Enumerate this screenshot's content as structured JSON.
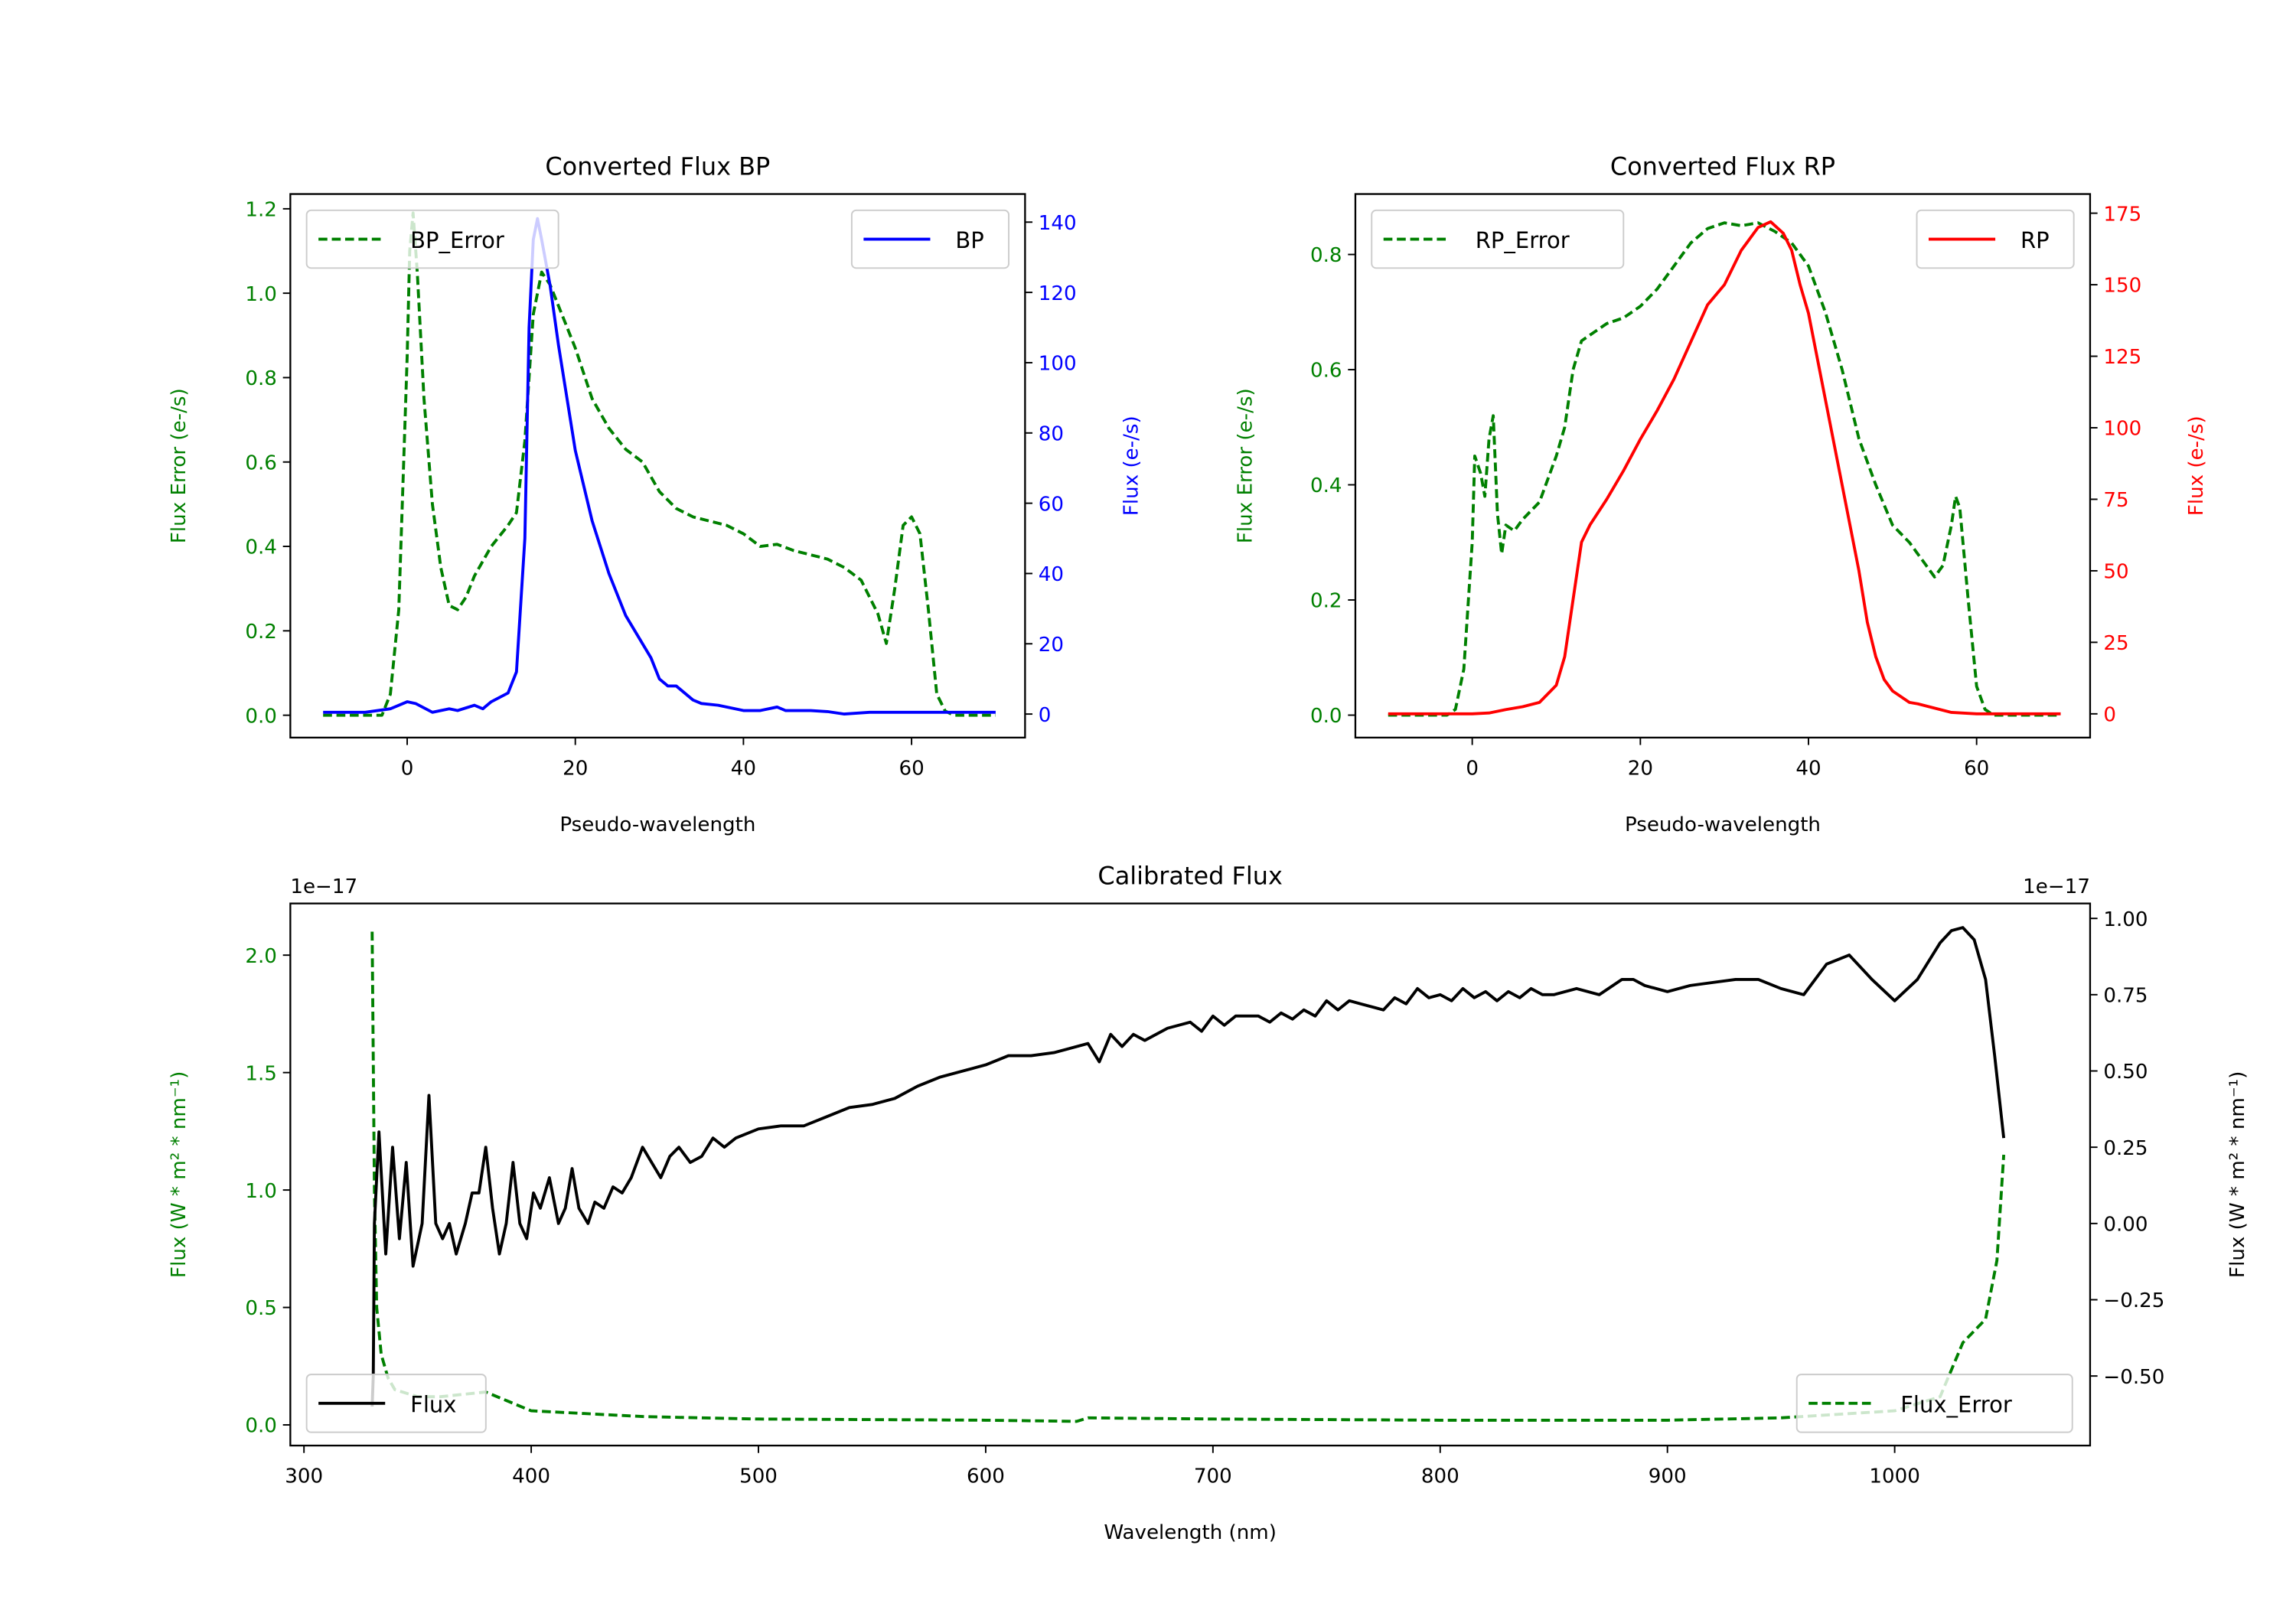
{
  "colors": {
    "green": "#008000",
    "blue": "#0000ff",
    "red": "#ff0000",
    "black": "#000000"
  },
  "chart_data": [
    {
      "type": "line",
      "title": "Converted Flux BP",
      "xlabel": "Pseudo-wavelength",
      "ylabel_left": "Flux Error (e-/s)",
      "ylabel_right": "Flux (e-/s)",
      "left_color": "#008000",
      "right_color": "#0000ff",
      "xlim": [
        -13.9,
        73.5
      ],
      "ylim_left": [
        -0.053,
        1.235
      ],
      "ylim_right": [
        -6.7,
        148
      ],
      "xticks": [
        {
          "v": 0,
          "t": "0"
        },
        {
          "v": 20,
          "t": "20"
        },
        {
          "v": 40,
          "t": "40"
        },
        {
          "v": 60,
          "t": "60"
        }
      ],
      "yticks_left": [
        {
          "v": 0,
          "t": "0.0"
        },
        {
          "v": 0.2,
          "t": "0.2"
        },
        {
          "v": 0.4,
          "t": "0.4"
        },
        {
          "v": 0.6,
          "t": "0.6"
        },
        {
          "v": 0.8,
          "t": "0.8"
        },
        {
          "v": 1.0,
          "t": "1.0"
        },
        {
          "v": 1.2,
          "t": "1.2"
        }
      ],
      "yticks_right": [
        {
          "v": 0,
          "t": "0"
        },
        {
          "v": 20,
          "t": "20"
        },
        {
          "v": 40,
          "t": "40"
        },
        {
          "v": 60,
          "t": "60"
        },
        {
          "v": 80,
          "t": "80"
        },
        {
          "v": 100,
          "t": "100"
        },
        {
          "v": 120,
          "t": "120"
        },
        {
          "v": 140,
          "t": "140"
        }
      ],
      "legend": [
        "upper left: BP_Error",
        "upper right: BP"
      ],
      "series": [
        {
          "name": "BP_Error",
          "axis": "left",
          "color": "#008000",
          "style": "dashed",
          "x": [
            -10,
            -3,
            -2,
            -1,
            -0.5,
            0,
            0.3,
            0.7,
            1.2,
            2,
            3,
            4,
            5,
            6,
            7,
            8,
            10,
            12,
            13,
            14,
            15,
            16,
            17,
            18,
            20,
            22,
            24,
            26,
            28,
            30,
            32,
            34,
            36,
            38,
            40,
            42,
            44,
            46,
            48,
            50,
            52,
            54,
            55,
            56,
            57,
            58,
            59,
            60,
            61,
            62,
            63,
            64,
            65,
            70
          ],
          "y": [
            0,
            0,
            0.05,
            0.25,
            0.55,
            0.85,
            1.1,
            1.19,
            1.05,
            0.75,
            0.5,
            0.35,
            0.26,
            0.25,
            0.28,
            0.33,
            0.4,
            0.45,
            0.48,
            0.65,
            0.95,
            1.05,
            1.02,
            0.97,
            0.87,
            0.75,
            0.68,
            0.63,
            0.6,
            0.53,
            0.49,
            0.47,
            0.46,
            0.45,
            0.43,
            0.4,
            0.405,
            0.39,
            0.38,
            0.37,
            0.35,
            0.32,
            0.28,
            0.24,
            0.17,
            0.3,
            0.45,
            0.47,
            0.43,
            0.25,
            0.05,
            0.01,
            0,
            0
          ]
        },
        {
          "name": "BP",
          "axis": "right",
          "color": "#0000ff",
          "style": "solid",
          "x": [
            -10,
            -5,
            -2,
            0,
            1,
            3,
            5,
            6,
            8,
            9,
            10,
            12,
            13,
            14,
            14.5,
            15,
            15.5,
            16,
            17,
            18,
            20,
            22,
            24,
            26,
            28,
            29,
            30,
            31,
            32,
            34,
            35,
            37,
            40,
            42,
            44,
            45,
            48,
            50,
            52,
            55,
            60,
            65,
            70
          ],
          "y": [
            0.5,
            0.5,
            1.5,
            3.5,
            3,
            0.5,
            1.5,
            1,
            2.5,
            1.5,
            3.5,
            6,
            12,
            50,
            110,
            135,
            141,
            135,
            122,
            105,
            75,
            55,
            40,
            28,
            20,
            16,
            10,
            8,
            8,
            4,
            3,
            2.5,
            1,
            1,
            2,
            1,
            1,
            0.7,
            0,
            0.5,
            0.5,
            0.5,
            0.5
          ]
        }
      ]
    },
    {
      "type": "line",
      "title": "Converted Flux RP",
      "xlabel": "Pseudo-wavelength",
      "ylabel_left": "Flux Error (e-/s)",
      "ylabel_right": "Flux (e-/s)",
      "left_color": "#008000",
      "right_color": "#ff0000",
      "xlim": [
        -13.9,
        73.5
      ],
      "ylim_left": [
        -0.039,
        0.905
      ],
      "ylim_right": [
        -8.3,
        181.7
      ],
      "xticks": [
        {
          "v": 0,
          "t": "0"
        },
        {
          "v": 20,
          "t": "20"
        },
        {
          "v": 40,
          "t": "40"
        },
        {
          "v": 60,
          "t": "60"
        }
      ],
      "yticks_left": [
        {
          "v": 0,
          "t": "0.0"
        },
        {
          "v": 0.2,
          "t": "0.2"
        },
        {
          "v": 0.4,
          "t": "0.4"
        },
        {
          "v": 0.6,
          "t": "0.6"
        },
        {
          "v": 0.8,
          "t": "0.8"
        }
      ],
      "yticks_right": [
        {
          "v": 0,
          "t": "0"
        },
        {
          "v": 25,
          "t": "25"
        },
        {
          "v": 50,
          "t": "50"
        },
        {
          "v": 75,
          "t": "75"
        },
        {
          "v": 100,
          "t": "100"
        },
        {
          "v": 125,
          "t": "125"
        },
        {
          "v": 150,
          "t": "150"
        },
        {
          "v": 175,
          "t": "175"
        }
      ],
      "legend": [
        "upper left: RP_Error",
        "upper right: RP"
      ],
      "series": [
        {
          "name": "RP_Error",
          "axis": "left",
          "color": "#008000",
          "style": "dashed",
          "x": [
            -10,
            -3,
            -2,
            -1,
            0,
            0.3,
            1,
            1.5,
            2,
            2.5,
            3,
            3.5,
            4,
            5,
            6,
            8,
            10,
            11,
            12,
            13,
            14,
            16,
            18,
            20,
            22,
            24,
            26,
            28,
            30,
            32,
            34,
            36,
            38,
            40,
            42,
            44,
            46,
            48,
            50,
            52,
            54,
            55,
            56,
            57,
            57.5,
            58,
            59,
            60,
            61,
            62,
            70
          ],
          "y": [
            0,
            0,
            0.01,
            0.08,
            0.3,
            0.45,
            0.42,
            0.38,
            0.48,
            0.52,
            0.35,
            0.28,
            0.33,
            0.32,
            0.34,
            0.37,
            0.45,
            0.5,
            0.6,
            0.65,
            0.66,
            0.68,
            0.69,
            0.71,
            0.74,
            0.78,
            0.82,
            0.845,
            0.855,
            0.85,
            0.855,
            0.84,
            0.82,
            0.78,
            0.7,
            0.6,
            0.48,
            0.4,
            0.33,
            0.3,
            0.26,
            0.24,
            0.26,
            0.33,
            0.38,
            0.36,
            0.2,
            0.05,
            0.01,
            0,
            0
          ]
        },
        {
          "name": "RP",
          "axis": "right",
          "color": "#ff0000",
          "style": "solid",
          "x": [
            -10,
            0,
            2,
            4,
            6,
            8,
            10,
            11,
            12,
            13,
            14,
            16,
            18,
            20,
            22,
            24,
            26,
            28,
            30,
            32,
            34,
            35.5,
            37,
            38,
            39,
            40,
            42,
            44,
            46,
            47,
            48,
            49,
            50,
            52,
            53,
            55,
            57,
            60,
            70
          ],
          "y": [
            0,
            0,
            0.3,
            1.5,
            2.5,
            4,
            10,
            20,
            40,
            60,
            66,
            75,
            85,
            96,
            106,
            117,
            130,
            143,
            150,
            162,
            170,
            172,
            168,
            162,
            150,
            140,
            110,
            80,
            50,
            32,
            20,
            12,
            8,
            4,
            3.5,
            2,
            0.5,
            0,
            0
          ]
        }
      ]
    },
    {
      "type": "line",
      "title": "Calibrated Flux",
      "xlabel": "Wavelength (nm)",
      "ylabel_left": "Flux (W * m² * nm⁻¹)",
      "ylabel_right": "Flux (W * m² * nm⁻¹)",
      "offset_left": "1e−17",
      "offset_right": "1e−17",
      "left_color": "#008000",
      "right_color": "#000000",
      "xlim": [
        294,
        1086
      ],
      "ylim_left": [
        -0.088,
        2.22
      ],
      "ylim_right": [
        -0.728,
        1.049
      ],
      "xticks": [
        {
          "v": 300,
          "t": "300"
        },
        {
          "v": 400,
          "t": "400"
        },
        {
          "v": 500,
          "t": "500"
        },
        {
          "v": 600,
          "t": "600"
        },
        {
          "v": 700,
          "t": "700"
        },
        {
          "v": 800,
          "t": "800"
        },
        {
          "v": 900,
          "t": "900"
        },
        {
          "v": 1000,
          "t": "1000"
        }
      ],
      "yticks_left": [
        {
          "v": 0,
          "t": "0.0"
        },
        {
          "v": 0.5,
          "t": "0.5"
        },
        {
          "v": 1.0,
          "t": "1.0"
        },
        {
          "v": 1.5,
          "t": "1.5"
        },
        {
          "v": 2.0,
          "t": "2.0"
        }
      ],
      "yticks_right": [
        {
          "v": -0.5,
          "t": "−0.50"
        },
        {
          "v": -0.25,
          "t": "−0.25"
        },
        {
          "v": 0,
          "t": "0.00"
        },
        {
          "v": 0.25,
          "t": "0.25"
        },
        {
          "v": 0.5,
          "t": "0.50"
        },
        {
          "v": 0.75,
          "t": "0.75"
        },
        {
          "v": 1.0,
          "t": "1.00"
        }
      ],
      "legend": [
        "lower left: Flux",
        "lower right: Flux_Error"
      ],
      "series": [
        {
          "name": "Flux_Error",
          "axis": "left",
          "color": "#008000",
          "style": "dashed",
          "x": [
            330,
            331,
            332,
            334,
            337,
            340,
            350,
            360,
            370,
            380,
            390,
            400,
            450,
            500,
            600,
            640,
            645,
            700,
            800,
            900,
            950,
            1000,
            1020,
            1030,
            1040,
            1045,
            1048
          ],
          "y": [
            2.1,
            1.0,
            0.5,
            0.3,
            0.2,
            0.15,
            0.12,
            0.12,
            0.13,
            0.14,
            0.1,
            0.06,
            0.035,
            0.025,
            0.02,
            0.015,
            0.03,
            0.025,
            0.02,
            0.02,
            0.03,
            0.06,
            0.12,
            0.35,
            0.45,
            0.7,
            1.15
          ]
        },
        {
          "name": "Flux",
          "axis": "right",
          "color": "#000000",
          "style": "solid",
          "x": [
            330,
            330.5,
            331,
            333,
            336,
            339,
            342,
            345,
            348,
            352,
            355,
            358,
            361,
            364,
            367,
            371,
            374,
            377,
            380,
            383,
            386,
            389,
            392,
            395,
            398,
            401,
            404,
            408,
            412,
            415,
            418,
            421,
            425,
            428,
            432,
            436,
            440,
            444,
            449,
            453,
            457,
            461,
            465,
            470,
            475,
            480,
            485,
            490,
            500,
            510,
            520,
            530,
            540,
            550,
            560,
            570,
            580,
            590,
            600,
            610,
            620,
            630,
            640,
            645,
            650,
            655,
            660,
            665,
            670,
            680,
            690,
            695,
            700,
            705,
            710,
            720,
            725,
            730,
            735,
            740,
            745,
            750,
            755,
            760,
            770,
            775,
            780,
            785,
            790,
            795,
            800,
            805,
            810,
            815,
            820,
            825,
            830,
            835,
            840,
            845,
            850,
            860,
            870,
            880,
            885,
            890,
            900,
            910,
            920,
            930,
            940,
            950,
            960,
            970,
            980,
            990,
            1000,
            1010,
            1020,
            1025,
            1030,
            1035,
            1040,
            1044,
            1048
          ],
          "y": [
            -0.6,
            -0.5,
            0.0,
            0.3,
            -0.1,
            0.25,
            -0.05,
            0.2,
            -0.14,
            0.0,
            0.42,
            0.0,
            -0.05,
            0.0,
            -0.1,
            0.0,
            0.1,
            0.1,
            0.25,
            0.05,
            -0.1,
            0.0,
            0.2,
            0.0,
            -0.05,
            0.1,
            0.05,
            0.15,
            0.0,
            0.05,
            0.18,
            0.05,
            0.0,
            0.07,
            0.05,
            0.12,
            0.1,
            0.15,
            0.25,
            0.2,
            0.15,
            0.22,
            0.25,
            0.2,
            0.22,
            0.28,
            0.25,
            0.28,
            0.31,
            0.32,
            0.32,
            0.35,
            0.38,
            0.39,
            0.41,
            0.45,
            0.48,
            0.5,
            0.52,
            0.55,
            0.55,
            0.56,
            0.58,
            0.59,
            0.53,
            0.62,
            0.58,
            0.62,
            0.6,
            0.64,
            0.66,
            0.63,
            0.68,
            0.65,
            0.68,
            0.68,
            0.66,
            0.69,
            0.67,
            0.7,
            0.68,
            0.73,
            0.7,
            0.73,
            0.71,
            0.7,
            0.74,
            0.72,
            0.77,
            0.74,
            0.75,
            0.73,
            0.77,
            0.74,
            0.76,
            0.73,
            0.76,
            0.74,
            0.77,
            0.75,
            0.75,
            0.77,
            0.75,
            0.8,
            0.8,
            0.78,
            0.76,
            0.78,
            0.79,
            0.8,
            0.8,
            0.77,
            0.75,
            0.85,
            0.88,
            0.8,
            0.73,
            0.8,
            0.92,
            0.96,
            0.97,
            0.93,
            0.8,
            0.55,
            0.28
          ]
        }
      ]
    }
  ]
}
